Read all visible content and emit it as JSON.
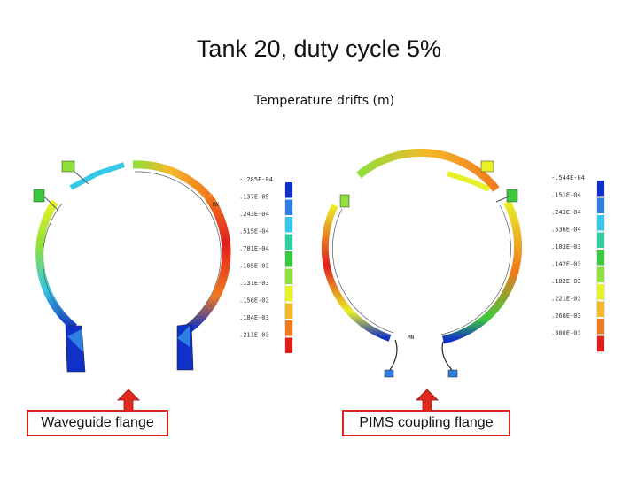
{
  "title": "Tank 20, duty cycle 5%",
  "subtitle": "Temperature drifts (m)",
  "left_figure": {
    "marker": "MX",
    "legend_labels": [
      "-.285E-04",
      ".137E-05",
      ".243E-04",
      ".515E-04",
      ".781E-04",
      ".105E-03",
      ".131E-03",
      ".158E-03",
      ".184E-03",
      ".211E-03"
    ],
    "callout": "Waveguide flange"
  },
  "right_figure": {
    "marker": "MN",
    "legend_labels": [
      "-.544E-04",
      ".151E-04",
      ".243E-04",
      ".536E-04",
      ".103E-03",
      ".142E-03",
      ".182E-03",
      ".221E-03",
      ".260E-03",
      ".300E-03"
    ],
    "callout": "PIMS coupling flange"
  },
  "colors": {
    "legend_scale": [
      "#1030c8",
      "#2f7fe0",
      "#36c8e8",
      "#2ecfa0",
      "#3cc83c",
      "#8fe03a",
      "#e8f028",
      "#f5b82a",
      "#f07a1e",
      "#e01e1e"
    ],
    "callout_border": "#d9251c",
    "arrow_fill": "#e02a1c"
  }
}
